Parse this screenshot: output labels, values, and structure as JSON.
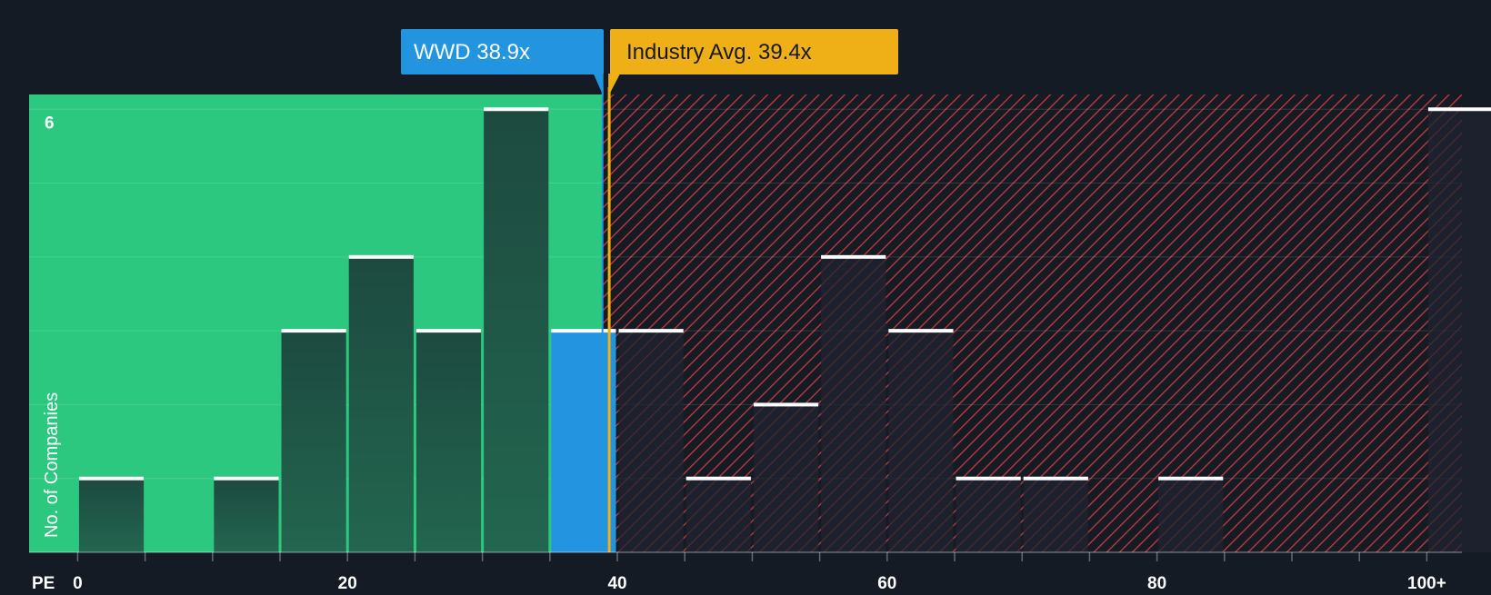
{
  "colors": {
    "background": "#151b24",
    "fair_zone": "#2dc87f",
    "overvalued_zone": "#c83a3e",
    "bar_dark": "#1d4a3f",
    "bar_overvalued": "#1f2430",
    "highlight_bar": "#2394df",
    "company_marker": "#2394df",
    "industry_marker": "#eeaf17",
    "bar_cap": "#ffffff",
    "axis_text": "#ffffff"
  },
  "chart_data": {
    "type": "bar",
    "title": "",
    "xlabel": "PE",
    "ylabel": "No. of Companies",
    "x_ticks": [
      "0",
      "20",
      "40",
      "60",
      "80",
      "100+"
    ],
    "x_tick_values": [
      0,
      20,
      40,
      60,
      80,
      100
    ],
    "minor_tick_values": [
      0,
      5,
      10,
      15,
      20,
      25,
      30,
      35,
      40,
      45,
      50,
      55,
      60,
      65,
      70,
      75,
      80,
      85,
      90,
      95,
      100
    ],
    "y_ticks": [
      "6"
    ],
    "y_tick_values": [
      6
    ],
    "xlim": [
      -3.6,
      102.6
    ],
    "ylim": [
      0,
      6.2
    ],
    "bin_width": 5,
    "bins": [
      {
        "start": 0,
        "count": 1
      },
      {
        "start": 10,
        "count": 1
      },
      {
        "start": 15,
        "count": 3
      },
      {
        "start": 20,
        "count": 4
      },
      {
        "start": 25,
        "count": 3
      },
      {
        "start": 30,
        "count": 6
      },
      {
        "start": 35,
        "count": 3,
        "highlight": true
      },
      {
        "start": 40,
        "count": 3
      },
      {
        "start": 45,
        "count": 1
      },
      {
        "start": 50,
        "count": 2
      },
      {
        "start": 55,
        "count": 4
      },
      {
        "start": 60,
        "count": 3
      },
      {
        "start": 65,
        "count": 1
      },
      {
        "start": 70,
        "count": 1
      },
      {
        "start": 80,
        "count": 1
      },
      {
        "start": 100,
        "count": 6
      }
    ],
    "company": {
      "ticker": "WWD",
      "value": 38.9,
      "label": "WWD 38.9x"
    },
    "industry": {
      "value": 39.4,
      "label": "Industry Avg. 39.4x"
    }
  }
}
